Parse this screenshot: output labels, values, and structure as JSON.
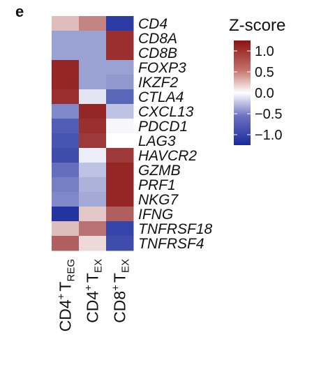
{
  "panel_label": "e",
  "colors": {
    "low": "#1a2a9c",
    "mid": "#ffffff",
    "high": "#8b1313"
  },
  "chart_data": {
    "type": "heatmap",
    "rows": [
      "CD4",
      "CD8A",
      "CD8B",
      "FOXP3",
      "IKZF2",
      "CTLA4",
      "CXCL13",
      "PDCD1",
      "LAG3",
      "HAVCR2",
      "GZMB",
      "PRF1",
      "NKG7",
      "IFNG",
      "TNFRSF18",
      "TNFRSF4"
    ],
    "columns": [
      {
        "main": "CD4",
        "sup": "+",
        "t": "T",
        "sub": "REG"
      },
      {
        "main": "CD4",
        "sup": "+",
        "t": "T",
        "sub": "EX"
      },
      {
        "main": "CD8",
        "sup": "+",
        "t": "T",
        "sub": "EX"
      }
    ],
    "values": [
      [
        0.35,
        0.65,
        -1.15
      ],
      [
        -0.55,
        -0.55,
        1.1
      ],
      [
        -0.55,
        -0.55,
        1.1
      ],
      [
        1.15,
        -0.55,
        -0.55
      ],
      [
        1.15,
        -0.55,
        -0.6
      ],
      [
        1.1,
        -0.15,
        -0.9
      ],
      [
        -0.7,
        1.15,
        -0.35
      ],
      [
        -0.95,
        1.1,
        -0.05
      ],
      [
        -1.0,
        1.05,
        0.0
      ],
      [
        -1.05,
        -0.1,
        1.05
      ],
      [
        -0.85,
        -0.35,
        1.15
      ],
      [
        -0.75,
        -0.45,
        1.15
      ],
      [
        -0.7,
        -0.5,
        1.15
      ],
      [
        -1.2,
        0.3,
        0.85
      ],
      [
        0.35,
        0.75,
        -1.1
      ],
      [
        0.85,
        0.2,
        -1.05
      ]
    ],
    "zlim": [
      -1.25,
      1.25
    ],
    "legend": {
      "title": "Z-score",
      "ticks": [
        {
          "value": 1.0,
          "label": "1.0"
        },
        {
          "value": 0.5,
          "label": "0.5"
        },
        {
          "value": 0.0,
          "label": "0.0"
        },
        {
          "value": -0.5,
          "label": "−0.5"
        },
        {
          "value": -1.0,
          "label": "−1.0"
        }
      ]
    }
  }
}
